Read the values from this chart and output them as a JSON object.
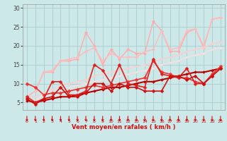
{
  "xlabel": "Vent moyen/en rafales ( km/h )",
  "background_color": "#cde8e8",
  "grid_color": "#aacccc",
  "xlim": [
    -0.5,
    23.5
  ],
  "ylim": [
    3,
    31
  ],
  "yticks": [
    5,
    10,
    15,
    20,
    25,
    30
  ],
  "xticks": [
    0,
    1,
    2,
    3,
    4,
    5,
    6,
    7,
    8,
    9,
    10,
    11,
    12,
    13,
    14,
    15,
    16,
    17,
    18,
    19,
    20,
    21,
    22,
    23
  ],
  "series": [
    {
      "x": [
        0,
        1,
        2,
        3,
        4,
        5,
        6,
        7,
        8,
        9,
        10,
        11,
        12,
        13,
        14,
        15,
        16,
        17,
        18,
        19,
        20,
        21,
        22,
        23
      ],
      "y": [
        6.5,
        8.0,
        13.0,
        13.0,
        16.0,
        16.0,
        16.5,
        23.5,
        20.0,
        15.0,
        19.0,
        16.5,
        19.0,
        18.0,
        18.0,
        26.5,
        24.0,
        18.5,
        18.5,
        23.5,
        24.5,
        19.5,
        27.0,
        27.5
      ],
      "color": "#ffaaaa",
      "lw": 1.0,
      "marker": "D",
      "ms": 2.0,
      "zorder": 2
    },
    {
      "x": [
        0,
        1,
        2,
        3,
        4,
        5,
        6,
        7,
        8,
        9,
        10,
        11,
        12,
        13,
        14,
        15,
        16,
        17,
        18,
        19,
        20,
        21,
        22,
        23
      ],
      "y": [
        6.5,
        8.0,
        13.0,
        13.5,
        16.0,
        16.5,
        17.0,
        18.5,
        19.5,
        16.0,
        18.0,
        17.0,
        17.0,
        17.0,
        18.5,
        19.0,
        24.0,
        19.0,
        19.5,
        24.0,
        24.5,
        20.0,
        27.0,
        27.5
      ],
      "color": "#ffbbbb",
      "lw": 1.0,
      "marker": "D",
      "ms": 2.0,
      "zorder": 2
    },
    {
      "x": [
        0,
        1,
        2,
        3,
        4,
        5,
        6,
        7,
        8,
        9,
        10,
        11,
        12,
        13,
        14,
        15,
        16,
        17,
        18,
        19,
        20,
        21,
        22,
        23
      ],
      "y": [
        6.5,
        6.5,
        7.5,
        8.5,
        9.5,
        10.0,
        10.5,
        11.0,
        12.0,
        12.5,
        13.0,
        13.5,
        14.0,
        14.5,
        15.0,
        15.5,
        16.5,
        17.0,
        17.5,
        18.5,
        19.0,
        19.5,
        20.5,
        21.0
      ],
      "color": "#ffcccc",
      "lw": 1.0,
      "marker": "D",
      "ms": 1.5,
      "zorder": 2
    },
    {
      "x": [
        0,
        1,
        2,
        3,
        4,
        5,
        6,
        7,
        8,
        9,
        10,
        11,
        12,
        13,
        14,
        15,
        16,
        17,
        18,
        19,
        20,
        21,
        22,
        23
      ],
      "y": [
        6.0,
        5.5,
        7.0,
        7.5,
        8.5,
        9.0,
        9.5,
        10.0,
        10.5,
        11.0,
        11.5,
        12.0,
        12.5,
        13.0,
        13.5,
        14.0,
        15.0,
        15.5,
        16.0,
        17.0,
        17.5,
        18.0,
        19.0,
        19.5
      ],
      "color": "#ffdddd",
      "lw": 1.0,
      "marker": "D",
      "ms": 1.5,
      "zorder": 1
    },
    {
      "x": [
        0,
        1,
        2,
        3,
        4,
        5,
        6,
        7,
        8,
        9,
        10,
        11,
        12,
        13,
        14,
        15,
        16,
        17,
        18,
        19,
        20,
        21,
        22,
        23
      ],
      "y": [
        6.5,
        5.0,
        6.0,
        10.5,
        10.5,
        7.0,
        7.0,
        8.0,
        15.0,
        13.5,
        10.0,
        15.0,
        10.0,
        9.5,
        9.0,
        16.5,
        12.5,
        12.0,
        11.5,
        14.0,
        10.0,
        10.0,
        12.0,
        14.0
      ],
      "color": "#dd2222",
      "lw": 1.2,
      "marker": "D",
      "ms": 2.5,
      "zorder": 4
    },
    {
      "x": [
        0,
        1,
        2,
        3,
        4,
        5,
        6,
        7,
        8,
        9,
        10,
        11,
        12,
        13,
        14,
        15,
        16,
        17,
        18,
        19,
        20,
        21,
        22,
        23
      ],
      "y": [
        6.0,
        4.5,
        6.0,
        6.5,
        9.0,
        6.5,
        6.5,
        7.5,
        10.0,
        10.0,
        8.0,
        10.0,
        9.0,
        9.0,
        8.0,
        8.0,
        8.0,
        12.0,
        12.0,
        11.0,
        12.0,
        10.0,
        12.0,
        14.0
      ],
      "color": "#cc1111",
      "lw": 1.2,
      "marker": "D",
      "ms": 2.5,
      "zorder": 4
    },
    {
      "x": [
        0,
        1,
        2,
        3,
        4,
        5,
        6,
        7,
        8,
        9,
        10,
        11,
        12,
        13,
        14,
        15,
        16,
        17,
        18,
        19,
        20,
        21,
        22,
        23
      ],
      "y": [
        5.5,
        5.0,
        5.5,
        6.0,
        6.5,
        6.5,
        7.0,
        7.5,
        8.0,
        8.5,
        9.0,
        9.0,
        9.5,
        10.0,
        10.5,
        10.5,
        11.0,
        11.5,
        12.0,
        12.5,
        13.0,
        13.0,
        13.5,
        14.0
      ],
      "color": "#bb0000",
      "lw": 1.5,
      "marker": "D",
      "ms": 2.0,
      "zorder": 3
    },
    {
      "x": [
        0,
        1,
        2,
        3,
        4,
        5,
        6,
        7,
        8,
        9,
        10,
        11,
        12,
        13,
        14,
        15,
        16,
        17,
        18,
        19,
        20,
        21,
        22,
        23
      ],
      "y": [
        10.0,
        9.0,
        7.0,
        7.5,
        7.5,
        8.0,
        8.5,
        9.0,
        9.5,
        9.0,
        9.5,
        10.0,
        10.5,
        11.0,
        11.5,
        16.0,
        13.0,
        12.5,
        11.5,
        11.5,
        10.5,
        10.0,
        12.5,
        14.5
      ],
      "color": "#ee3333",
      "lw": 1.2,
      "marker": "D",
      "ms": 2.5,
      "zorder": 3
    }
  ]
}
